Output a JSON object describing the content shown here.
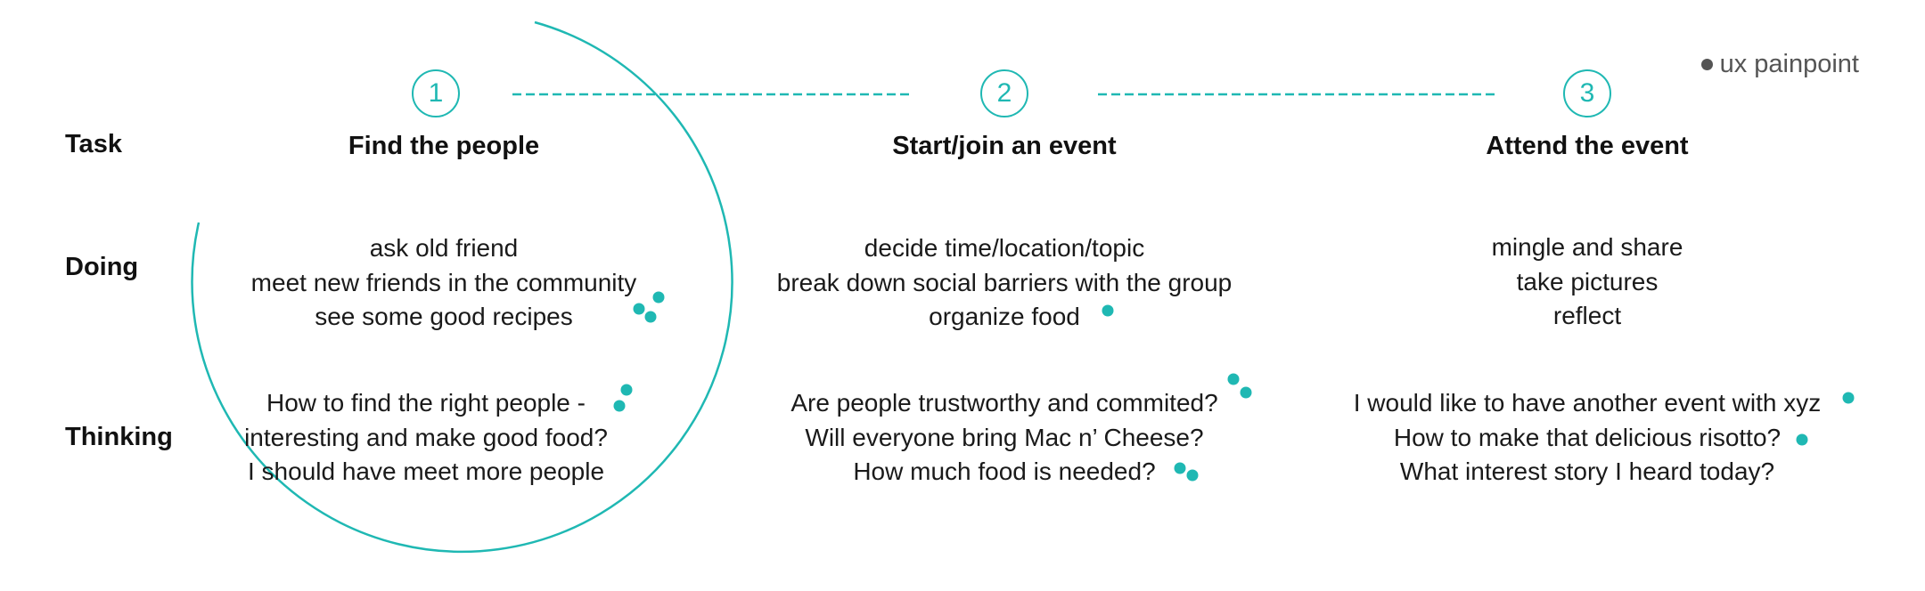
{
  "legend": {
    "label": "ux painpoint"
  },
  "colors": {
    "accent": "#1fb8b3",
    "text": "#1a1a1a",
    "legend": "#555555"
  },
  "row_labels": {
    "task": "Task",
    "doing": "Doing",
    "thinking": "Thinking"
  },
  "steps": [
    {
      "number": "1",
      "title": "Find the people",
      "doing": [
        "ask old friend",
        "meet new friends in the community",
        "see some good recipes"
      ],
      "thinking": [
        "How to find the right people -",
        "interesting and make good food?",
        "I should have meet more people"
      ]
    },
    {
      "number": "2",
      "title": "Start/join an event",
      "doing": [
        "decide time/location/topic",
        "break down social barriers with the group",
        "organize food"
      ],
      "thinking": [
        "Are people trustworthy and commited?",
        "Will everyone bring Mac n’ Cheese?",
        "How much food is needed?"
      ]
    },
    {
      "number": "3",
      "title": "Attend the event",
      "doing": [
        "mingle and share",
        "take pictures",
        "reflect"
      ],
      "thinking": [
        "I would like to have another event with xyz",
        "How to make that delicious risotto?",
        "What interest story I heard today?"
      ]
    }
  ]
}
